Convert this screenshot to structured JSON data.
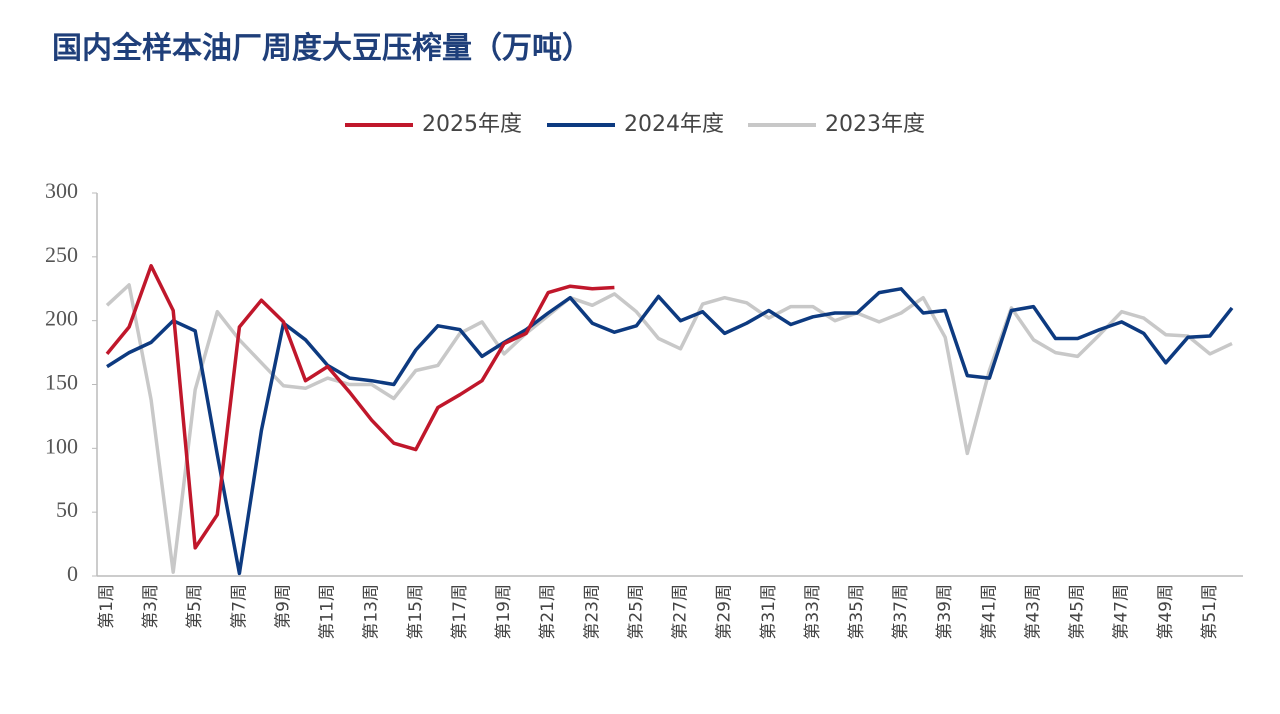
{
  "chart_data": {
    "type": "line",
    "title": "国内全样本油厂周度大豆压榨量（万吨）",
    "categories": [
      "第1周",
      null,
      "第3周",
      null,
      "第5周",
      null,
      "第7周",
      null,
      "第9周",
      null,
      "第11周",
      null,
      "第13周",
      null,
      "第15周",
      null,
      "第17周",
      null,
      "第19周",
      null,
      "第21周",
      null,
      "第23周",
      null,
      "第25周",
      null,
      "第27周",
      null,
      "第29周",
      null,
      "第31周",
      null,
      "第33周",
      null,
      "第35周",
      null,
      "第37周",
      null,
      "第39周",
      null,
      "第41周",
      null,
      "第43周",
      null,
      "第45周",
      null,
      "第47周",
      null,
      "第49周",
      null,
      "第51周",
      null
    ],
    "series": [
      {
        "name": "2025年度",
        "color": "#c0172b",
        "values": [
          174,
          195,
          243,
          208,
          22,
          48,
          195,
          216,
          199,
          153,
          164,
          144,
          122,
          104,
          99,
          132,
          142,
          153,
          182,
          190,
          222,
          227,
          225,
          226,
          null,
          null,
          null,
          null,
          null,
          null,
          null,
          null,
          null,
          null,
          null,
          null,
          null,
          null,
          null,
          null,
          null,
          null,
          null,
          null,
          null,
          null,
          null,
          null,
          null,
          null,
          null,
          null
        ]
      },
      {
        "name": "2024年度",
        "color": "#0d3a80",
        "values": [
          164,
          175,
          183,
          200,
          192,
          95,
          2,
          114,
          198,
          185,
          165,
          155,
          153,
          150,
          177,
          196,
          193,
          172,
          183,
          193,
          206,
          218,
          198,
          191,
          196,
          219,
          200,
          207,
          190,
          198,
          208,
          197,
          203,
          206,
          206,
          222,
          225,
          206,
          208,
          157,
          155,
          208,
          211,
          186,
          186,
          193,
          199,
          190,
          167,
          187,
          188,
          210
        ]
      },
      {
        "name": "2023年度",
        "color": "#c8c8c8",
        "values": [
          212,
          228,
          138,
          3,
          146,
          207,
          185,
          167,
          149,
          147,
          155,
          150,
          150,
          139,
          161,
          165,
          190,
          199,
          174,
          190,
          204,
          218,
          212,
          221,
          207,
          186,
          178,
          213,
          218,
          214,
          202,
          211,
          211,
          200,
          206,
          199,
          206,
          218,
          187,
          96,
          161,
          210,
          185,
          175,
          172,
          189,
          207,
          202,
          189,
          188,
          174,
          182
        ]
      }
    ],
    "ylim": [
      0,
      300
    ],
    "yticks": [
      0,
      50,
      100,
      150,
      200,
      250,
      300
    ],
    "grid": false,
    "legend": "top"
  }
}
